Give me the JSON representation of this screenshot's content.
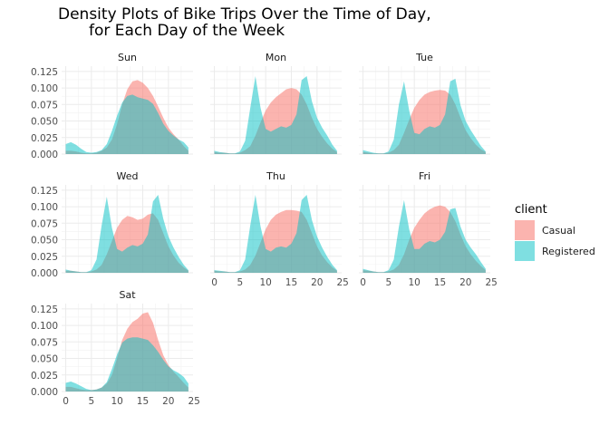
{
  "chart_data": {
    "type": "area",
    "title": "Density Plots of Bike Trips Over the Time of Day,",
    "title_line2": "for Each Day of the Week",
    "xlabel": "",
    "ylabel": "",
    "x_ticks": [
      "0",
      "5",
      "10",
      "15",
      "20",
      "25"
    ],
    "y_ticks": [
      "0.000",
      "0.025",
      "0.050",
      "0.075",
      "0.100",
      "0.125"
    ],
    "xlim": [
      -0.8,
      24.8
    ],
    "ylim": [
      0,
      0.133
    ],
    "x": [
      0,
      1,
      2,
      3,
      4,
      5,
      6,
      7,
      8,
      9,
      10,
      11,
      12,
      13,
      14,
      15,
      16,
      17,
      18,
      19,
      20,
      21,
      22,
      23,
      23.9
    ],
    "legend": {
      "title": "client",
      "position": "right",
      "entries": [
        {
          "label": "Casual",
          "color": "#F8766D"
        },
        {
          "label": "Registered",
          "color": "#00BFC4"
        }
      ]
    },
    "grid": true,
    "panels": [
      {
        "label": "Sun",
        "series": [
          {
            "name": "Casual",
            "values": [
              0.005,
              0.005,
              0.004,
              0.002,
              0.001,
              0.001,
              0.002,
              0.005,
              0.01,
              0.022,
              0.045,
              0.075,
              0.098,
              0.11,
              0.112,
              0.108,
              0.1,
              0.088,
              0.072,
              0.055,
              0.04,
              0.03,
              0.022,
              0.012,
              0.005
            ]
          },
          {
            "name": "Registered",
            "values": [
              0.015,
              0.018,
              0.014,
              0.008,
              0.003,
              0.002,
              0.003,
              0.006,
              0.015,
              0.035,
              0.058,
              0.078,
              0.088,
              0.09,
              0.086,
              0.084,
              0.082,
              0.076,
              0.062,
              0.046,
              0.035,
              0.028,
              0.022,
              0.018,
              0.01
            ]
          }
        ]
      },
      {
        "label": "Mon",
        "series": [
          {
            "name": "Casual",
            "values": [
              0.003,
              0.002,
              0.002,
              0.001,
              0.001,
              0.002,
              0.006,
              0.012,
              0.028,
              0.048,
              0.066,
              0.078,
              0.086,
              0.092,
              0.098,
              0.1,
              0.098,
              0.09,
              0.075,
              0.055,
              0.038,
              0.026,
              0.016,
              0.008,
              0.003
            ]
          },
          {
            "name": "Registered",
            "values": [
              0.005,
              0.003,
              0.002,
              0.001,
              0.001,
              0.004,
              0.02,
              0.07,
              0.118,
              0.07,
              0.038,
              0.034,
              0.038,
              0.042,
              0.04,
              0.044,
              0.06,
              0.112,
              0.118,
              0.08,
              0.055,
              0.04,
              0.028,
              0.014,
              0.005
            ]
          }
        ]
      },
      {
        "label": "Tue",
        "series": [
          {
            "name": "Casual",
            "values": [
              0.003,
              0.002,
              0.001,
              0.001,
              0.001,
              0.002,
              0.006,
              0.014,
              0.032,
              0.052,
              0.07,
              0.082,
              0.09,
              0.094,
              0.096,
              0.097,
              0.096,
              0.09,
              0.075,
              0.055,
              0.036,
              0.024,
              0.014,
              0.007,
              0.003
            ]
          },
          {
            "name": "Registered",
            "values": [
              0.006,
              0.004,
              0.002,
              0.001,
              0.001,
              0.004,
              0.022,
              0.075,
              0.11,
              0.066,
              0.032,
              0.03,
              0.038,
              0.042,
              0.04,
              0.044,
              0.06,
              0.11,
              0.114,
              0.074,
              0.05,
              0.036,
              0.024,
              0.012,
              0.004
            ]
          }
        ]
      },
      {
        "label": "Wed",
        "series": [
          {
            "name": "Casual",
            "values": [
              0.003,
              0.003,
              0.002,
              0.001,
              0.001,
              0.002,
              0.005,
              0.012,
              0.028,
              0.048,
              0.068,
              0.08,
              0.086,
              0.084,
              0.08,
              0.082,
              0.088,
              0.09,
              0.08,
              0.06,
              0.04,
              0.026,
              0.015,
              0.008,
              0.003
            ]
          },
          {
            "name": "Registered",
            "values": [
              0.005,
              0.003,
              0.002,
              0.001,
              0.001,
              0.004,
              0.02,
              0.072,
              0.115,
              0.068,
              0.036,
              0.032,
              0.038,
              0.042,
              0.04,
              0.044,
              0.058,
              0.108,
              0.118,
              0.082,
              0.055,
              0.038,
              0.024,
              0.012,
              0.004
            ]
          }
        ]
      },
      {
        "label": "Thu",
        "series": [
          {
            "name": "Casual",
            "values": [
              0.003,
              0.002,
              0.002,
              0.001,
              0.001,
              0.002,
              0.005,
              0.012,
              0.026,
              0.046,
              0.066,
              0.08,
              0.088,
              0.092,
              0.095,
              0.095,
              0.094,
              0.092,
              0.08,
              0.06,
              0.04,
              0.026,
              0.016,
              0.008,
              0.003
            ]
          },
          {
            "name": "Registered",
            "values": [
              0.004,
              0.003,
              0.002,
              0.001,
              0.001,
              0.004,
              0.02,
              0.072,
              0.118,
              0.07,
              0.036,
              0.032,
              0.038,
              0.04,
              0.038,
              0.044,
              0.06,
              0.11,
              0.118,
              0.08,
              0.055,
              0.038,
              0.024,
              0.012,
              0.004
            ]
          }
        ]
      },
      {
        "label": "Fri",
        "series": [
          {
            "name": "Casual",
            "values": [
              0.004,
              0.003,
              0.002,
              0.001,
              0.001,
              0.002,
              0.005,
              0.012,
              0.028,
              0.05,
              0.068,
              0.08,
              0.09,
              0.096,
              0.1,
              0.102,
              0.1,
              0.092,
              0.078,
              0.058,
              0.04,
              0.028,
              0.018,
              0.01,
              0.004
            ]
          },
          {
            "name": "Registered",
            "values": [
              0.006,
              0.004,
              0.002,
              0.001,
              0.001,
              0.004,
              0.02,
              0.07,
              0.11,
              0.066,
              0.036,
              0.036,
              0.044,
              0.048,
              0.046,
              0.05,
              0.062,
              0.096,
              0.098,
              0.07,
              0.05,
              0.038,
              0.028,
              0.016,
              0.006
            ]
          }
        ]
      },
      {
        "label": "Sat",
        "series": [
          {
            "name": "Casual",
            "values": [
              0.007,
              0.007,
              0.005,
              0.003,
              0.002,
              0.002,
              0.003,
              0.006,
              0.012,
              0.025,
              0.05,
              0.078,
              0.095,
              0.105,
              0.11,
              0.118,
              0.12,
              0.104,
              0.078,
              0.055,
              0.04,
              0.03,
              0.022,
              0.013,
              0.006
            ]
          },
          {
            "name": "Registered",
            "values": [
              0.013,
              0.015,
              0.012,
              0.008,
              0.004,
              0.002,
              0.003,
              0.006,
              0.014,
              0.034,
              0.056,
              0.074,
              0.08,
              0.082,
              0.082,
              0.08,
              0.078,
              0.07,
              0.06,
              0.048,
              0.038,
              0.032,
              0.028,
              0.022,
              0.012
            ]
          }
        ]
      }
    ]
  }
}
